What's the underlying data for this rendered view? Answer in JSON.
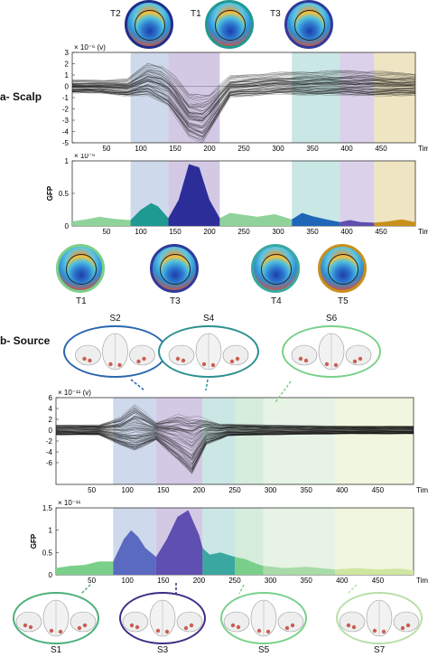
{
  "sections": {
    "scalp": "a- Scalp",
    "source": "b- Source"
  },
  "colors": {
    "T1": "#1e9a92",
    "T2": "#1f2e8a",
    "T3": "#2f3a9a",
    "T4": "#1f66b8",
    "T5": "#c8901a",
    "S1": "#5f6fc0",
    "S2": "#2d2d86",
    "S3": "#2d8f8f",
    "S4": "#4ca89a",
    "S5": "#8fd39a",
    "S6": "#b7e0a8",
    "S7": "#d7e7a4",
    "lightgreen": "#7ad08a"
  },
  "scalp_topomaps_top": [
    {
      "label": "T2",
      "ring": "#1f2e8a"
    },
    {
      "label": "T1",
      "ring": "#1e9a92"
    },
    {
      "label": "T3",
      "ring": "#2f3a9a"
    }
  ],
  "scalp_topomaps_bottom": [
    {
      "label": "T1",
      "ring": "#7ad08a"
    },
    {
      "label": "T3",
      "ring": "#2f3a9a"
    },
    {
      "label": "T4",
      "ring": "#3aa8a0"
    },
    {
      "label": "T5",
      "ring": "#c8901a"
    }
  ],
  "source_ovals_top": [
    {
      "label": "S2",
      "ring": "#2b66b0"
    },
    {
      "label": "S4",
      "ring": "#2d8f8f"
    },
    {
      "label": "S6",
      "ring": "#7ad08a"
    }
  ],
  "source_ovals_bottom": [
    {
      "label": "S1",
      "ring": "#4caf7a"
    },
    {
      "label": "S3",
      "ring": "#3a2f86"
    },
    {
      "label": "S5",
      "ring": "#7ad08a"
    },
    {
      "label": "S7",
      "ring": "#b7e0a8"
    }
  ],
  "chart_data": [
    {
      "type": "line",
      "panel": "scalp-butterfly",
      "scale_note": "× 10⁻⁶ (v)",
      "xlabel": "Time (ms)",
      "xlim": [
        0,
        500
      ],
      "ylim": [
        -5,
        3
      ],
      "xticks": [
        50,
        100,
        150,
        200,
        250,
        300,
        350,
        400,
        450
      ],
      "yticks": [
        3,
        2,
        1,
        0,
        -1,
        -2,
        -3,
        -4,
        -5
      ],
      "bands": [
        {
          "from": 85,
          "to": 140,
          "color": "#c5d2e8"
        },
        {
          "from": 140,
          "to": 215,
          "color": "#cdbfe0"
        },
        {
          "from": 320,
          "to": 390,
          "color": "#bfe3e0"
        },
        {
          "from": 390,
          "to": 440,
          "color": "#d6c9e8"
        },
        {
          "from": 440,
          "to": 500,
          "color": "#ece0b8"
        }
      ],
      "mean_waveform": [
        [
          0,
          0
        ],
        [
          40,
          0.1
        ],
        [
          80,
          -0.2
        ],
        [
          100,
          0.5
        ],
        [
          120,
          1.6
        ],
        [
          135,
          1.2
        ],
        [
          150,
          0
        ],
        [
          170,
          -2.5
        ],
        [
          190,
          -3.6
        ],
        [
          205,
          -2
        ],
        [
          220,
          0.1
        ],
        [
          260,
          0.3
        ],
        [
          300,
          0.5
        ],
        [
          340,
          0.4
        ],
        [
          380,
          0.6
        ],
        [
          420,
          0.3
        ],
        [
          460,
          0.6
        ],
        [
          500,
          0.2
        ]
      ],
      "envelope": [
        [
          0,
          0.6
        ],
        [
          40,
          0.6
        ],
        [
          80,
          0.7
        ],
        [
          110,
          2.2
        ],
        [
          130,
          2.0
        ],
        [
          150,
          1.0
        ],
        [
          170,
          -0.5
        ],
        [
          200,
          -0.5
        ],
        [
          230,
          1.0
        ],
        [
          300,
          1.3
        ],
        [
          350,
          1.4
        ],
        [
          400,
          1.5
        ],
        [
          450,
          1.4
        ],
        [
          500,
          1.2
        ]
      ],
      "envelope_low": [
        [
          0,
          -0.6
        ],
        [
          40,
          -0.6
        ],
        [
          80,
          -0.9
        ],
        [
          110,
          -0.8
        ],
        [
          140,
          -1.8
        ],
        [
          170,
          -4.5
        ],
        [
          190,
          -5.0
        ],
        [
          210,
          -3.0
        ],
        [
          230,
          -1.0
        ],
        [
          300,
          -0.7
        ],
        [
          350,
          -0.8
        ],
        [
          400,
          -0.8
        ],
        [
          450,
          -0.9
        ],
        [
          500,
          -0.8
        ]
      ]
    },
    {
      "type": "area",
      "panel": "scalp-gfp",
      "ylabel": "GFP",
      "scale_note": "× 10⁻⁶",
      "xlabel": "Time (ms)",
      "xlim": [
        0,
        500
      ],
      "ylim": [
        0,
        1
      ],
      "xticks": [
        50,
        100,
        150,
        200,
        250,
        300,
        350,
        400,
        450
      ],
      "yticks": [
        1,
        0.5,
        0
      ],
      "bands": [
        {
          "from": 85,
          "to": 140,
          "color": "#c5d2e8"
        },
        {
          "from": 140,
          "to": 215,
          "color": "#cdbfe0"
        },
        {
          "from": 320,
          "to": 390,
          "color": "#bfe3e0"
        },
        {
          "from": 390,
          "to": 440,
          "color": "#d6c9e8"
        },
        {
          "from": 440,
          "to": 500,
          "color": "#ece0b8"
        }
      ],
      "segments": [
        {
          "color": "#8fd39a",
          "points": [
            [
              0,
              0.07
            ],
            [
              20,
              0.1
            ],
            [
              40,
              0.14
            ],
            [
              60,
              0.11
            ],
            [
              85,
              0.09
            ]
          ]
        },
        {
          "color": "#1e9a92",
          "points": [
            [
              85,
              0.09
            ],
            [
              100,
              0.25
            ],
            [
              115,
              0.35
            ],
            [
              125,
              0.3
            ],
            [
              140,
              0.12
            ]
          ]
        },
        {
          "color": "#2d2d9a",
          "points": [
            [
              140,
              0.12
            ],
            [
              155,
              0.4
            ],
            [
              170,
              0.95
            ],
            [
              185,
              0.9
            ],
            [
              200,
              0.4
            ],
            [
              215,
              0.12
            ]
          ]
        },
        {
          "color": "#8fd39a",
          "points": [
            [
              215,
              0.12
            ],
            [
              230,
              0.2
            ],
            [
              250,
              0.17
            ],
            [
              270,
              0.14
            ],
            [
              295,
              0.18
            ],
            [
              320,
              0.1
            ]
          ]
        },
        {
          "color": "#1f66b8",
          "points": [
            [
              320,
              0.1
            ],
            [
              335,
              0.2
            ],
            [
              350,
              0.15
            ],
            [
              370,
              0.1
            ],
            [
              390,
              0.06
            ]
          ]
        },
        {
          "color": "#5f4fb0",
          "points": [
            [
              390,
              0.06
            ],
            [
              405,
              0.09
            ],
            [
              420,
              0.06
            ],
            [
              440,
              0.05
            ]
          ]
        },
        {
          "color": "#c8901a",
          "points": [
            [
              440,
              0.05
            ],
            [
              460,
              0.07
            ],
            [
              480,
              0.1
            ],
            [
              500,
              0.06
            ]
          ]
        }
      ]
    },
    {
      "type": "line",
      "panel": "source-butterfly",
      "scale_note": "× 10⁻¹¹ (v)",
      "xlabel": "Time (ms)",
      "xlim": [
        0,
        500
      ],
      "ylim": [
        -10,
        6
      ],
      "xticks": [
        50,
        100,
        150,
        200,
        250,
        300,
        350,
        400,
        450
      ],
      "yticks": [
        6,
        4,
        2,
        0,
        -2,
        -4,
        -6
      ],
      "bands": [
        {
          "from": 80,
          "to": 140,
          "color": "#c5d2e8"
        },
        {
          "from": 140,
          "to": 205,
          "color": "#cdbfe0"
        },
        {
          "from": 205,
          "to": 250,
          "color": "#c2e3e0"
        },
        {
          "from": 250,
          "to": 290,
          "color": "#cfe9d6"
        },
        {
          "from": 290,
          "to": 390,
          "color": "#e2f1e0"
        },
        {
          "from": 390,
          "to": 500,
          "color": "#eef4d8"
        }
      ],
      "envelope": [
        [
          0,
          1.0
        ],
        [
          60,
          1.0
        ],
        [
          90,
          2.5
        ],
        [
          110,
          5.0
        ],
        [
          140,
          1.5
        ],
        [
          170,
          3.0
        ],
        [
          200,
          2.5
        ],
        [
          230,
          1.2
        ],
        [
          300,
          1.0
        ],
        [
          400,
          0.8
        ],
        [
          500,
          0.8
        ]
      ],
      "envelope_low": [
        [
          0,
          -1.0
        ],
        [
          60,
          -1.0
        ],
        [
          90,
          -3.0
        ],
        [
          110,
          -4.5
        ],
        [
          140,
          -2.0
        ],
        [
          170,
          -6.0
        ],
        [
          190,
          -9.0
        ],
        [
          210,
          -3.0
        ],
        [
          240,
          -1.2
        ],
        [
          300,
          -1.0
        ],
        [
          400,
          -0.8
        ],
        [
          500,
          -0.8
        ]
      ]
    },
    {
      "type": "area",
      "panel": "source-gfp",
      "ylabel": "GFP",
      "scale_note": "× 10⁻¹¹",
      "xlabel": "Time (ms)",
      "xlim": [
        0,
        500
      ],
      "ylim": [
        0,
        1.5
      ],
      "xticks": [
        50,
        100,
        150,
        200,
        250,
        300,
        350,
        400,
        450
      ],
      "yticks": [
        1.5,
        1,
        0.5,
        0
      ],
      "bands": [
        {
          "from": 80,
          "to": 140,
          "color": "#c5d2e8"
        },
        {
          "from": 140,
          "to": 205,
          "color": "#cdbfe0"
        },
        {
          "from": 205,
          "to": 250,
          "color": "#c2e3e0"
        },
        {
          "from": 250,
          "to": 290,
          "color": "#cfe9d6"
        },
        {
          "from": 290,
          "to": 390,
          "color": "#e2f1e0"
        },
        {
          "from": 390,
          "to": 500,
          "color": "#eef4d8"
        }
      ],
      "segments": [
        {
          "color": "#7ad08a",
          "points": [
            [
              0,
              0.15
            ],
            [
              20,
              0.2
            ],
            [
              40,
              0.22
            ],
            [
              60,
              0.3
            ],
            [
              80,
              0.3
            ]
          ]
        },
        {
          "color": "#5a6ac0",
          "points": [
            [
              80,
              0.3
            ],
            [
              95,
              0.8
            ],
            [
              105,
              1.0
            ],
            [
              115,
              0.85
            ],
            [
              125,
              0.6
            ],
            [
              140,
              0.4
            ]
          ]
        },
        {
          "color": "#5f4fb0",
          "points": [
            [
              140,
              0.4
            ],
            [
              155,
              0.8
            ],
            [
              170,
              1.3
            ],
            [
              185,
              1.45
            ],
            [
              200,
              0.9
            ],
            [
              205,
              0.6
            ]
          ]
        },
        {
          "color": "#3aa8a0",
          "points": [
            [
              205,
              0.6
            ],
            [
              215,
              0.45
            ],
            [
              230,
              0.5
            ],
            [
              250,
              0.4
            ]
          ]
        },
        {
          "color": "#7ad08a",
          "points": [
            [
              250,
              0.4
            ],
            [
              265,
              0.35
            ],
            [
              280,
              0.25
            ],
            [
              290,
              0.2
            ]
          ]
        },
        {
          "color": "#a9dba8",
          "points": [
            [
              290,
              0.2
            ],
            [
              320,
              0.15
            ],
            [
              350,
              0.18
            ],
            [
              390,
              0.12
            ]
          ]
        },
        {
          "color": "#cfe6a0",
          "points": [
            [
              390,
              0.12
            ],
            [
              420,
              0.15
            ],
            [
              450,
              0.12
            ],
            [
              480,
              0.14
            ],
            [
              500,
              0.1
            ]
          ]
        }
      ]
    }
  ]
}
